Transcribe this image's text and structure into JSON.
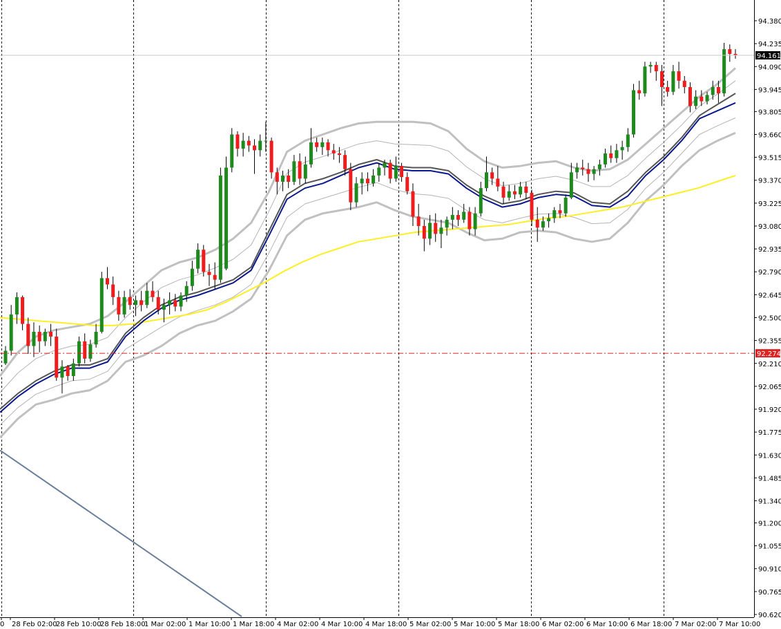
{
  "colors": {
    "bull": "#1e8a1e",
    "bear": "#ee1c1c",
    "wick": "#000000",
    "ma_yellow": "#ffee22",
    "band_outer": "#c0c0c0",
    "band_inner": "#b4b4b4",
    "mid_dark": "#555555",
    "mid_blue": "#0a1a8c",
    "trendline": "#6a7f99",
    "level_red": "#dd2222",
    "bid_line": "#c8c8c8",
    "grid_vertical": "#000000"
  },
  "chart_data": {
    "type": "candlestick",
    "title": "",
    "xlabel": "",
    "ylabel": "",
    "ylim": [
      90.62,
      94.43
    ],
    "grid": "vertical-dashed-daily",
    "price_ticks": [
      "94.380",
      "94.235",
      "94.090",
      "93.945",
      "93.805",
      "93.660",
      "93.515",
      "93.370",
      "93.225",
      "93.080",
      "92.935",
      "92.790",
      "92.645",
      "92.500",
      "92.355",
      "92.210",
      "92.065",
      "91.920",
      "91.775",
      "91.630",
      "91.485",
      "91.340",
      "91.200",
      "91.055",
      "90.910",
      "90.765",
      "90.620"
    ],
    "time_ticks": [
      "0",
      "28 Feb 02:00",
      "28 Feb 10:00",
      "28 Feb 18:00",
      "1 Mar 02:00",
      "1 Mar 10:00",
      "1 Mar 18:00",
      "4 Mar 02:00",
      "4 Mar 10:00",
      "4 Mar 18:00",
      "5 Mar 02:00",
      "5 Mar 10:00",
      "5 Mar 18:00",
      "6 Mar 02:00",
      "6 Mar 10:00",
      "6 Mar 18:00",
      "7 Mar 02:00",
      "7 Mar 10:00"
    ],
    "current_price": "94.161",
    "horizontal_level": "92.274",
    "candles_ohlc": [
      [
        92.21,
        92.32,
        92.2,
        92.29
      ],
      [
        92.29,
        92.58,
        92.26,
        92.52
      ],
      [
        92.52,
        92.66,
        92.46,
        92.63
      ],
      [
        92.63,
        92.64,
        92.42,
        92.46
      ],
      [
        92.46,
        92.5,
        92.27,
        92.32
      ],
      [
        92.32,
        92.47,
        92.25,
        92.41
      ],
      [
        92.41,
        92.45,
        92.28,
        92.35
      ],
      [
        92.35,
        92.43,
        92.32,
        92.41
      ],
      [
        92.41,
        92.46,
        92.32,
        92.38
      ],
      [
        92.38,
        92.43,
        92.1,
        92.12
      ],
      [
        92.12,
        92.23,
        92.02,
        92.19
      ],
      [
        92.19,
        92.2,
        92.1,
        92.13
      ],
      [
        92.13,
        92.24,
        92.1,
        92.21
      ],
      [
        92.21,
        92.38,
        92.19,
        92.35
      ],
      [
        92.35,
        92.4,
        92.21,
        92.24
      ],
      [
        92.24,
        92.36,
        92.22,
        92.33
      ],
      [
        92.33,
        92.46,
        92.31,
        92.41
      ],
      [
        92.41,
        92.79,
        92.4,
        92.75
      ],
      [
        92.75,
        92.82,
        92.68,
        92.71
      ],
      [
        92.71,
        92.76,
        92.58,
        92.63
      ],
      [
        92.63,
        92.67,
        92.48,
        92.52
      ],
      [
        92.52,
        92.67,
        92.5,
        92.63
      ],
      [
        92.63,
        92.68,
        92.55,
        92.58
      ],
      [
        92.58,
        92.64,
        92.51,
        92.61
      ],
      [
        92.61,
        92.67,
        92.54,
        92.58
      ],
      [
        92.58,
        92.72,
        92.56,
        92.67
      ],
      [
        92.67,
        92.73,
        92.6,
        92.63
      ],
      [
        92.63,
        92.67,
        92.52,
        92.55
      ],
      [
        92.55,
        92.62,
        92.47,
        92.58
      ],
      [
        92.58,
        92.66,
        92.52,
        92.61
      ],
      [
        92.61,
        92.65,
        92.54,
        92.57
      ],
      [
        92.57,
        92.66,
        92.54,
        92.64
      ],
      [
        92.64,
        92.73,
        92.6,
        92.7
      ],
      [
        92.7,
        92.86,
        92.67,
        92.81
      ],
      [
        92.81,
        92.97,
        92.78,
        92.93
      ],
      [
        92.93,
        92.96,
        92.76,
        92.79
      ],
      [
        92.79,
        92.84,
        92.7,
        92.77
      ],
      [
        92.77,
        92.85,
        92.68,
        92.74
      ],
      [
        92.74,
        93.45,
        92.72,
        93.4
      ],
      [
        92.81,
        93.52,
        92.8,
        93.45
      ],
      [
        93.45,
        93.7,
        93.42,
        93.66
      ],
      [
        93.66,
        93.68,
        93.52,
        93.57
      ],
      [
        93.57,
        93.67,
        93.52,
        93.62
      ],
      [
        93.62,
        93.65,
        93.55,
        93.59
      ],
      [
        93.59,
        93.63,
        93.41,
        93.56
      ],
      [
        93.56,
        93.66,
        93.52,
        93.62
      ],
      [
        93.62,
        93.74,
        93.55,
        93.62
      ],
      [
        93.62,
        93.64,
        93.38,
        93.42
      ],
      [
        93.42,
        93.45,
        93.28,
        93.36
      ],
      [
        93.36,
        93.43,
        93.3,
        93.4
      ],
      [
        93.4,
        93.44,
        93.32,
        93.36
      ],
      [
        93.36,
        93.53,
        93.34,
        93.49
      ],
      [
        93.49,
        93.54,
        93.34,
        93.38
      ],
      [
        93.38,
        93.52,
        93.35,
        93.47
      ],
      [
        93.47,
        93.7,
        93.45,
        93.61
      ],
      [
        93.61,
        93.64,
        93.55,
        93.58
      ],
      [
        93.58,
        93.64,
        93.53,
        93.61
      ],
      [
        93.61,
        93.63,
        93.52,
        93.56
      ],
      [
        93.56,
        93.6,
        93.5,
        93.54
      ],
      [
        93.54,
        93.58,
        93.48,
        93.53
      ],
      [
        93.53,
        93.56,
        93.4,
        93.44
      ],
      [
        93.44,
        93.48,
        93.18,
        93.23
      ],
      [
        93.23,
        93.39,
        93.2,
        93.35
      ],
      [
        93.35,
        93.42,
        93.28,
        93.38
      ],
      [
        93.38,
        93.42,
        93.3,
        93.35
      ],
      [
        93.35,
        93.44,
        93.33,
        93.4
      ],
      [
        93.4,
        93.48,
        93.36,
        93.45
      ],
      [
        93.45,
        93.5,
        93.4,
        93.48
      ],
      [
        93.48,
        93.5,
        93.35,
        93.38
      ],
      [
        93.38,
        93.52,
        93.36,
        93.46
      ],
      [
        93.46,
        93.48,
        93.36,
        93.39
      ],
      [
        93.39,
        93.42,
        93.28,
        93.3
      ],
      [
        93.3,
        93.35,
        93.08,
        93.14
      ],
      [
        93.14,
        93.22,
        93.02,
        93.08
      ],
      [
        93.08,
        93.12,
        92.92,
        93.0
      ],
      [
        93.0,
        93.15,
        92.96,
        93.1
      ],
      [
        93.1,
        93.16,
        92.98,
        93.03
      ],
      [
        93.03,
        93.12,
        92.94,
        93.07
      ],
      [
        93.07,
        93.14,
        93.02,
        93.12
      ],
      [
        93.12,
        93.2,
        93.06,
        93.15
      ],
      [
        93.15,
        93.18,
        93.08,
        93.12
      ],
      [
        93.12,
        93.22,
        93.1,
        93.17
      ],
      [
        93.17,
        93.2,
        93.02,
        93.06
      ],
      [
        93.06,
        93.2,
        93.02,
        93.16
      ],
      [
        93.16,
        93.36,
        93.14,
        93.32
      ],
      [
        93.32,
        93.52,
        93.3,
        93.42
      ],
      [
        93.42,
        93.45,
        93.34,
        93.38
      ],
      [
        93.38,
        93.46,
        93.3,
        93.33
      ],
      [
        93.33,
        93.36,
        93.22,
        93.26
      ],
      [
        93.26,
        93.34,
        93.24,
        93.3
      ],
      [
        93.3,
        93.34,
        93.25,
        93.28
      ],
      [
        93.28,
        93.36,
        93.26,
        93.33
      ],
      [
        93.33,
        93.36,
        93.25,
        93.29
      ],
      [
        93.29,
        93.31,
        93.08,
        93.12
      ],
      [
        93.12,
        93.2,
        92.98,
        93.07
      ],
      [
        93.07,
        93.14,
        93.05,
        93.11
      ],
      [
        93.11,
        93.16,
        93.07,
        93.13
      ],
      [
        93.13,
        93.2,
        93.1,
        93.18
      ],
      [
        93.18,
        93.22,
        93.13,
        93.16
      ],
      [
        93.16,
        93.28,
        93.14,
        93.26
      ],
      [
        93.26,
        93.48,
        93.25,
        93.42
      ],
      [
        93.42,
        93.48,
        93.38,
        93.45
      ],
      [
        93.45,
        93.5,
        93.4,
        93.44
      ],
      [
        93.44,
        93.48,
        93.36,
        93.41
      ],
      [
        93.41,
        93.46,
        93.37,
        93.44
      ],
      [
        93.44,
        93.5,
        93.4,
        93.47
      ],
      [
        93.47,
        93.57,
        93.45,
        93.54
      ],
      [
        93.54,
        93.59,
        93.48,
        93.51
      ],
      [
        93.51,
        93.6,
        93.48,
        93.56
      ],
      [
        93.56,
        93.62,
        93.5,
        93.58
      ],
      [
        93.58,
        93.7,
        93.55,
        93.66
      ],
      [
        93.66,
        93.98,
        93.64,
        93.94
      ],
      [
        93.94,
        94.0,
        93.88,
        93.92
      ],
      [
        93.92,
        94.12,
        93.9,
        94.09
      ],
      [
        94.09,
        94.12,
        94.05,
        94.1
      ],
      [
        94.1,
        94.12,
        94.0,
        94.06
      ],
      [
        94.06,
        94.1,
        93.84,
        93.96
      ],
      [
        93.96,
        94.0,
        93.9,
        93.93
      ],
      [
        93.93,
        94.1,
        93.91,
        94.06
      ],
      [
        94.06,
        94.12,
        93.95,
        94.0
      ],
      [
        94.0,
        94.03,
        93.92,
        93.96
      ],
      [
        93.96,
        93.99,
        93.8,
        93.84
      ],
      [
        93.84,
        93.94,
        93.82,
        93.9
      ],
      [
        93.9,
        93.94,
        93.84,
        93.87
      ],
      [
        93.87,
        93.93,
        93.85,
        93.91
      ],
      [
        93.91,
        94.0,
        93.88,
        93.96
      ],
      [
        93.96,
        94.0,
        93.86,
        93.92
      ],
      [
        93.92,
        94.24,
        93.9,
        94.2
      ],
      [
        94.2,
        94.23,
        94.12,
        94.17
      ],
      [
        94.17,
        94.2,
        94.14,
        94.16
      ]
    ],
    "ma_yellow_series": [
      92.5,
      92.49,
      92.48,
      92.47,
      92.46,
      92.45,
      92.45,
      92.46,
      92.48,
      92.5,
      92.52,
      92.55,
      92.6,
      92.66,
      92.72,
      92.79,
      92.85,
      92.9,
      92.94,
      92.98,
      93.0,
      93.02,
      93.04,
      93.05,
      93.06,
      93.07,
      93.08,
      93.09,
      93.11,
      93.13,
      93.14,
      93.16,
      93.18,
      93.2,
      93.23,
      93.26,
      93.29,
      93.32,
      93.36,
      93.4
    ],
    "mid_dark_series": [
      91.92,
      92.02,
      92.1,
      92.16,
      92.2,
      92.2,
      92.24,
      92.4,
      92.5,
      92.58,
      92.63,
      92.66,
      92.7,
      92.74,
      92.82,
      93.05,
      93.28,
      93.35,
      93.38,
      93.42,
      93.47,
      93.5,
      93.46,
      93.45,
      93.45,
      93.43,
      93.34,
      93.27,
      93.22,
      93.24,
      93.28,
      93.3,
      93.29,
      93.23,
      93.22,
      93.3,
      93.42,
      93.52,
      93.64,
      93.78,
      93.85,
      93.92
    ],
    "mid_blue_series": [
      91.9,
      92.0,
      92.08,
      92.14,
      92.18,
      92.18,
      92.22,
      92.38,
      92.48,
      92.56,
      92.61,
      92.64,
      92.68,
      92.72,
      92.8,
      93.02,
      93.25,
      93.32,
      93.35,
      93.4,
      93.45,
      93.48,
      93.44,
      93.43,
      93.43,
      93.41,
      93.32,
      93.25,
      93.2,
      93.22,
      93.26,
      93.28,
      93.27,
      93.21,
      93.2,
      93.27,
      93.4,
      93.5,
      93.62,
      93.76,
      93.81,
      93.86
    ],
    "band_upper_series": [
      92.13,
      92.28,
      92.38,
      92.42,
      92.44,
      92.46,
      92.51,
      92.6,
      92.7,
      92.8,
      92.85,
      92.88,
      92.93,
      93.0,
      93.1,
      93.3,
      93.55,
      93.62,
      93.66,
      93.7,
      93.73,
      93.74,
      93.74,
      93.74,
      93.73,
      93.68,
      93.57,
      93.49,
      93.45,
      93.46,
      93.48,
      93.49,
      93.45,
      93.43,
      93.44,
      93.5,
      93.6,
      93.7,
      93.8,
      93.9,
      93.98,
      94.08
    ],
    "band_lower_series": [
      91.74,
      91.86,
      91.95,
      91.98,
      92.02,
      92.04,
      92.1,
      92.22,
      92.26,
      92.32,
      92.4,
      92.45,
      92.48,
      92.54,
      92.62,
      92.8,
      93.02,
      93.12,
      93.16,
      93.18,
      93.2,
      93.23,
      93.18,
      93.14,
      93.12,
      93.1,
      93.04,
      92.99,
      93.0,
      93.04,
      93.05,
      93.04,
      93.0,
      92.98,
      93.0,
      93.1,
      93.24,
      93.34,
      93.46,
      93.56,
      93.62,
      93.67
    ],
    "trendline": [
      [
        91.66,
        0
      ],
      [
        90.62,
        72
      ]
    ]
  }
}
